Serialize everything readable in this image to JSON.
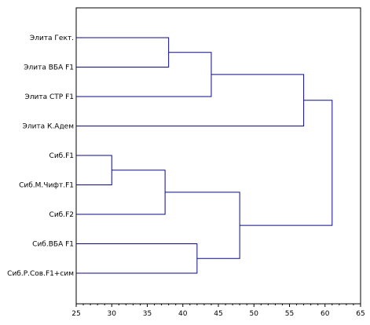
{
  "chart_data": {
    "type": "dendrogram",
    "orientation": "horizontal",
    "leaves": [
      "Элита Гект.",
      "Элита ВБА F1",
      "Элита СТР F1",
      "Элита К.Адем",
      "Сиб.F1",
      "Сиб.М.Чифт.F1",
      "Сиб.F2",
      "Сиб.ВБА F1",
      "Сиб.Р.Сов.F1+сим"
    ],
    "merges": [
      {
        "a": 4,
        "b": 5,
        "height": 30
      },
      {
        "a": 0,
        "b": 1,
        "height": 38
      },
      {
        "a": "m0",
        "b": 6,
        "height": 37.5
      },
      {
        "a": 7,
        "b": 8,
        "height": 42
      },
      {
        "a": "m1",
        "b": 2,
        "height": 44
      },
      {
        "a": "m2",
        "b": "m3",
        "height": 48
      },
      {
        "a": "m4",
        "b": 3,
        "height": 57
      },
      {
        "a": "m6",
        "b": "m5",
        "height": 61
      }
    ],
    "xlim": [
      25,
      65
    ],
    "xticks": [
      25,
      30,
      35,
      40,
      45,
      50,
      55,
      60,
      65
    ],
    "grid": false,
    "colors": {
      "links": "#0a0a8a",
      "frame": "#000000"
    }
  }
}
